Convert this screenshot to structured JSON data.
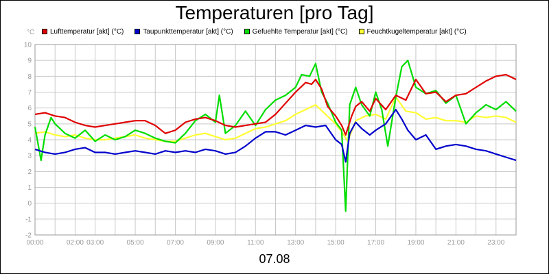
{
  "chart_data": {
    "type": "line",
    "title": "Temperaturen [pro Tag]",
    "ylabel": "°C",
    "xlabel": "07.08",
    "x_unit": "hours",
    "xlim": [
      0,
      24
    ],
    "ylim": [
      -2,
      10
    ],
    "yticks": [
      -2,
      -1,
      0,
      1,
      2,
      3,
      4,
      5,
      6,
      7,
      8,
      9,
      10
    ],
    "xticks": [
      {
        "label": "00:00",
        "hour": 0
      },
      {
        "label": "02:00",
        "hour": 2
      },
      {
        "label": "03:00",
        "hour": 3
      },
      {
        "label": "05:00",
        "hour": 5
      },
      {
        "label": "07:00",
        "hour": 7
      },
      {
        "label": "09:00",
        "hour": 9
      },
      {
        "label": "11:00",
        "hour": 11
      },
      {
        "label": "13:00",
        "hour": 13
      },
      {
        "label": "15:00",
        "hour": 15
      },
      {
        "label": "17:00",
        "hour": 17
      },
      {
        "label": "19:00",
        "hour": 19
      },
      {
        "label": "21:00",
        "hour": 21
      },
      {
        "label": "23:00",
        "hour": 23
      }
    ],
    "gridlines_hours": [
      0,
      1,
      2,
      3,
      4,
      5,
      6,
      7,
      8,
      9,
      10,
      11,
      12,
      13,
      14,
      15,
      16,
      17,
      18,
      19,
      20,
      21,
      22,
      23,
      24
    ],
    "grid": true,
    "legend_position": "top",
    "series": [
      {
        "name": "Lufttemperatur [akt] (°C)",
        "color": "#e00000",
        "x": [
          0,
          0.5,
          1,
          1.5,
          2,
          2.5,
          3,
          3.5,
          4,
          4.5,
          5,
          5.5,
          6,
          6.5,
          7,
          7.5,
          8,
          8.5,
          9,
          9.5,
          10,
          10.5,
          11,
          11.5,
          12,
          12.5,
          13,
          13.5,
          13.8,
          14,
          14.3,
          14.6,
          15,
          15.3,
          15.5,
          15.8,
          16,
          16.3,
          16.7,
          17,
          17.5,
          18,
          18.5,
          19,
          19.5,
          20,
          20.5,
          21,
          21.5,
          22,
          22.5,
          23,
          23.5,
          24
        ],
        "y": [
          5.6,
          5.7,
          5.5,
          5.4,
          5.1,
          4.9,
          4.8,
          4.9,
          5.0,
          5.1,
          5.2,
          5.2,
          4.9,
          4.4,
          4.6,
          5.1,
          5.3,
          5.4,
          5.2,
          4.9,
          4.8,
          4.9,
          5.0,
          5.1,
          5.6,
          6.3,
          7.0,
          7.6,
          7.5,
          7.8,
          7.2,
          6.1,
          5.5,
          4.9,
          4.3,
          5.5,
          6.1,
          6.4,
          5.8,
          6.6,
          5.9,
          6.8,
          6.5,
          7.8,
          6.9,
          7.0,
          6.4,
          6.8,
          6.9,
          7.3,
          7.7,
          8.0,
          8.1,
          7.8
        ]
      },
      {
        "name": "Taupunkttemperatur [akt] (°C)",
        "color": "#0000cc",
        "x": [
          0,
          0.5,
          1,
          1.5,
          2,
          2.5,
          3,
          3.5,
          4,
          4.5,
          5,
          5.5,
          6,
          6.5,
          7,
          7.5,
          8,
          8.5,
          9,
          9.5,
          10,
          10.5,
          11,
          11.5,
          12,
          12.5,
          13,
          13.5,
          14,
          14.5,
          15,
          15.3,
          15.5,
          15.7,
          16,
          16.3,
          16.7,
          17,
          17.5,
          18,
          18.3,
          18.6,
          19,
          19.5,
          20,
          20.5,
          21,
          21.5,
          22,
          22.5,
          23,
          23.5,
          24
        ],
        "y": [
          3.4,
          3.2,
          3.1,
          3.2,
          3.4,
          3.5,
          3.2,
          3.2,
          3.1,
          3.2,
          3.3,
          3.2,
          3.1,
          3.3,
          3.2,
          3.3,
          3.2,
          3.4,
          3.3,
          3.1,
          3.2,
          3.6,
          4.1,
          4.5,
          4.5,
          4.3,
          4.6,
          4.9,
          4.8,
          4.9,
          4.0,
          3.7,
          2.6,
          4.4,
          5.1,
          4.7,
          4.3,
          4.6,
          5.0,
          5.9,
          5.3,
          4.6,
          4.0,
          4.3,
          3.4,
          3.6,
          3.7,
          3.6,
          3.4,
          3.3,
          3.1,
          2.9,
          2.7
        ]
      },
      {
        "name": "Gefuehlte Temperatur [akt] (°C)",
        "color": "#00dd00",
        "x": [
          0,
          0.3,
          0.5,
          0.8,
          1,
          1.5,
          2,
          2.5,
          3,
          3.5,
          4,
          4.5,
          5,
          5.5,
          6,
          6.5,
          7,
          7.5,
          8,
          8.5,
          9,
          9.2,
          9.5,
          9.8,
          10,
          10.5,
          11,
          11.5,
          12,
          12.5,
          13,
          13.3,
          13.7,
          14,
          14.3,
          14.6,
          15,
          15.3,
          15.5,
          15.7,
          16,
          16.3,
          16.7,
          17,
          17.3,
          17.6,
          18,
          18.3,
          18.6,
          19,
          19.5,
          20,
          20.5,
          21,
          21.5,
          22,
          22.5,
          23,
          23.5,
          24
        ],
        "y": [
          4.8,
          2.7,
          4.3,
          5.4,
          5.0,
          4.4,
          4.1,
          4.6,
          3.9,
          4.3,
          4.0,
          4.2,
          4.6,
          4.4,
          4.1,
          3.9,
          3.8,
          4.4,
          5.2,
          5.6,
          5.1,
          6.8,
          4.4,
          4.7,
          4.9,
          5.8,
          4.9,
          5.9,
          6.5,
          6.8,
          7.3,
          8.1,
          8.0,
          8.8,
          7.0,
          6.3,
          5.1,
          4.6,
          -0.5,
          6.2,
          7.3,
          6.2,
          5.5,
          7.0,
          5.9,
          3.6,
          6.7,
          8.6,
          9.0,
          7.3,
          6.9,
          7.1,
          6.3,
          6.8,
          5.0,
          5.7,
          6.2,
          5.9,
          6.4,
          5.8
        ]
      },
      {
        "name": "Feuchtkugeltemperatur [akt] (°C)",
        "color": "#ffff33",
        "x": [
          0,
          0.5,
          1,
          1.5,
          2,
          2.5,
          3,
          3.5,
          4,
          4.5,
          5,
          5.5,
          6,
          6.5,
          7,
          7.5,
          8,
          8.5,
          9,
          9.5,
          10,
          10.5,
          11,
          11.5,
          12,
          12.5,
          13,
          13.5,
          14,
          14.5,
          15,
          15.3,
          15.6,
          16,
          16.5,
          17,
          17.5,
          18,
          18.5,
          19,
          19.5,
          20,
          20.5,
          21,
          21.5,
          22,
          22.5,
          23,
          23.5,
          24
        ],
        "y": [
          4.4,
          4.5,
          4.3,
          4.2,
          4.3,
          4.1,
          4.0,
          4.0,
          4.1,
          4.2,
          4.3,
          4.1,
          4.0,
          3.9,
          3.9,
          4.1,
          4.3,
          4.4,
          4.2,
          4.0,
          4.1,
          4.4,
          4.7,
          4.8,
          5.0,
          5.2,
          5.6,
          5.9,
          6.2,
          5.6,
          5.0,
          4.5,
          3.9,
          5.2,
          5.5,
          5.6,
          5.3,
          6.7,
          5.8,
          5.7,
          5.3,
          5.4,
          5.2,
          5.2,
          5.1,
          5.5,
          5.4,
          5.5,
          5.4,
          5.1
        ]
      }
    ]
  }
}
